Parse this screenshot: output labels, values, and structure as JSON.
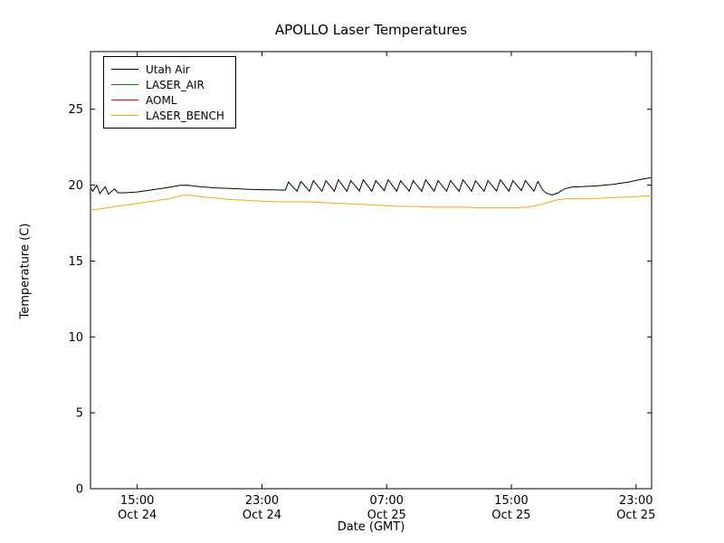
{
  "chart_data": {
    "type": "line",
    "title": "APOLLO Laser Temperatures",
    "xlabel": "Date (GMT)",
    "ylabel": "Temperature (C)",
    "ylim": [
      0,
      28.8
    ],
    "xlim_hours": [
      12,
      48
    ],
    "grid": false,
    "legend_position": "upper left",
    "y_ticks": [
      0,
      5,
      10,
      15,
      20,
      25
    ],
    "x_ticks": [
      {
        "hour": 15,
        "time": "15:00",
        "date": "Oct 24"
      },
      {
        "hour": 23,
        "time": "23:00",
        "date": "Oct 24"
      },
      {
        "hour": 31,
        "time": "07:00",
        "date": "Oct 25"
      },
      {
        "hour": 39,
        "time": "15:00",
        "date": "Oct 25"
      },
      {
        "hour": 47,
        "time": "23:00",
        "date": "Oct 25"
      }
    ],
    "series": [
      {
        "name": "Utah Air",
        "color": "#000000",
        "points": [
          [
            12,
            19.85
          ],
          [
            12.15,
            19.6
          ],
          [
            12.4,
            20.0
          ],
          [
            12.6,
            19.45
          ],
          [
            12.95,
            19.9
          ],
          [
            13.15,
            19.4
          ],
          [
            13.55,
            19.75
          ],
          [
            13.75,
            19.5
          ],
          [
            14.2,
            19.5
          ],
          [
            15,
            19.55
          ],
          [
            16,
            19.7
          ],
          [
            17,
            19.85
          ],
          [
            17.7,
            19.98
          ],
          [
            18.2,
            20.0
          ],
          [
            19,
            19.9
          ],
          [
            20,
            19.82
          ],
          [
            21,
            19.78
          ],
          [
            22,
            19.73
          ],
          [
            23,
            19.7
          ],
          [
            24,
            19.68
          ],
          [
            24.5,
            19.67
          ],
          [
            24.7,
            20.2
          ],
          [
            25.25,
            19.6
          ],
          [
            25.5,
            20.25
          ],
          [
            26.05,
            19.6
          ],
          [
            26.3,
            20.3
          ],
          [
            26.85,
            19.6
          ],
          [
            27.1,
            20.3
          ],
          [
            27.65,
            19.6
          ],
          [
            27.9,
            20.35
          ],
          [
            28.45,
            19.6
          ],
          [
            28.7,
            20.3
          ],
          [
            29.25,
            19.62
          ],
          [
            29.5,
            20.35
          ],
          [
            30.05,
            19.6
          ],
          [
            30.3,
            20.3
          ],
          [
            30.85,
            19.65
          ],
          [
            31.1,
            20.35
          ],
          [
            31.65,
            19.6
          ],
          [
            31.9,
            20.3
          ],
          [
            32.45,
            19.6
          ],
          [
            32.7,
            20.3
          ],
          [
            33.25,
            19.6
          ],
          [
            33.5,
            20.35
          ],
          [
            34.05,
            19.6
          ],
          [
            34.3,
            20.3
          ],
          [
            34.85,
            19.6
          ],
          [
            35.1,
            20.3
          ],
          [
            35.65,
            19.6
          ],
          [
            35.9,
            20.35
          ],
          [
            36.45,
            19.6
          ],
          [
            36.7,
            20.3
          ],
          [
            37.25,
            19.6
          ],
          [
            37.5,
            20.3
          ],
          [
            38.05,
            19.62
          ],
          [
            38.3,
            20.35
          ],
          [
            38.85,
            19.6
          ],
          [
            39.1,
            20.3
          ],
          [
            39.65,
            19.65
          ],
          [
            39.9,
            20.3
          ],
          [
            40.45,
            19.6
          ],
          [
            40.7,
            20.25
          ],
          [
            41.0,
            19.7
          ],
          [
            41.2,
            19.5
          ],
          [
            41.6,
            19.35
          ],
          [
            42.0,
            19.5
          ],
          [
            42.4,
            19.75
          ],
          [
            42.9,
            19.88
          ],
          [
            43.5,
            19.9
          ],
          [
            44.5,
            19.95
          ],
          [
            45.5,
            20.05
          ],
          [
            46.5,
            20.2
          ],
          [
            47.3,
            20.38
          ],
          [
            48,
            20.5
          ]
        ]
      },
      {
        "name": "LASER_AIR",
        "color": "#008000",
        "points": []
      },
      {
        "name": "AOML",
        "color": "#ff0000",
        "points": []
      },
      {
        "name": "LASER_BENCH",
        "color": "#ffa500",
        "points": [
          [
            12,
            18.35
          ],
          [
            13,
            18.5
          ],
          [
            14,
            18.65
          ],
          [
            15,
            18.8
          ],
          [
            16,
            18.95
          ],
          [
            17,
            19.1
          ],
          [
            17.8,
            19.3
          ],
          [
            18.3,
            19.35
          ],
          [
            19,
            19.25
          ],
          [
            20,
            19.15
          ],
          [
            21,
            19.05
          ],
          [
            22,
            19.0
          ],
          [
            23,
            18.95
          ],
          [
            24,
            18.9
          ],
          [
            25,
            18.9
          ],
          [
            26,
            18.9
          ],
          [
            27,
            18.85
          ],
          [
            28,
            18.8
          ],
          [
            29,
            18.75
          ],
          [
            30,
            18.7
          ],
          [
            31,
            18.65
          ],
          [
            32,
            18.6
          ],
          [
            33,
            18.6
          ],
          [
            34,
            18.55
          ],
          [
            35,
            18.55
          ],
          [
            36,
            18.55
          ],
          [
            37,
            18.5
          ],
          [
            38,
            18.5
          ],
          [
            39,
            18.5
          ],
          [
            40,
            18.55
          ],
          [
            40.8,
            18.7
          ],
          [
            41.5,
            18.9
          ],
          [
            42,
            19.05
          ],
          [
            42.5,
            19.1
          ],
          [
            43,
            19.1
          ],
          [
            44,
            19.1
          ],
          [
            45,
            19.15
          ],
          [
            46,
            19.2
          ],
          [
            47,
            19.25
          ],
          [
            48,
            19.3
          ]
        ]
      }
    ]
  }
}
